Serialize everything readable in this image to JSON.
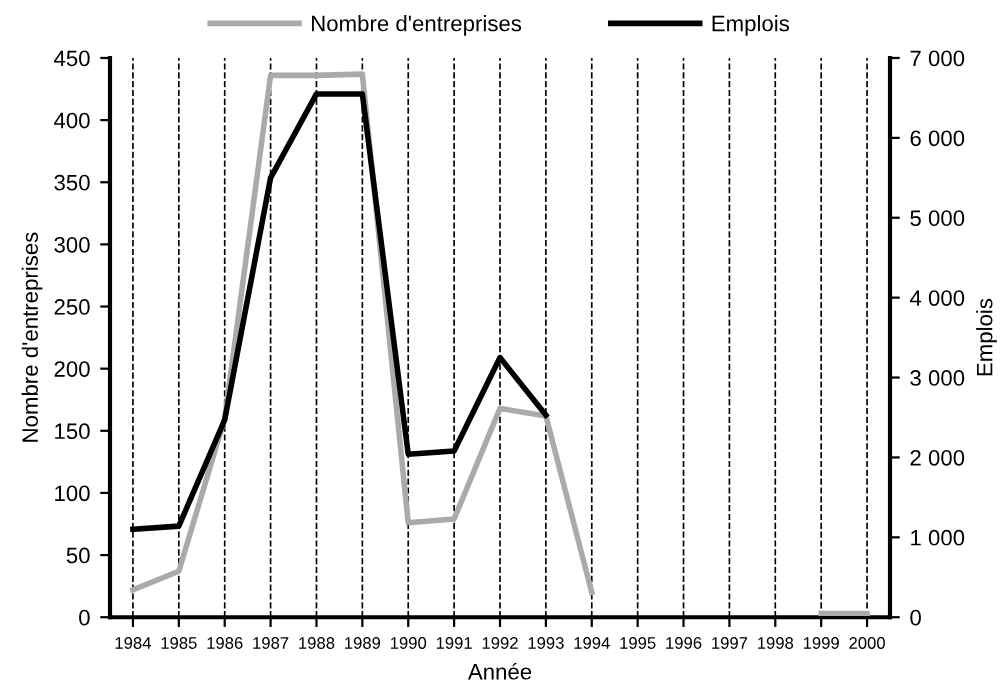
{
  "chart_data": {
    "type": "line",
    "xlabel": "Année",
    "ylabel": "Nombre d'entreprises",
    "y2label": "Emplois",
    "categories": [
      "1984",
      "1985",
      "1986",
      "1987",
      "1988",
      "1989",
      "1990",
      "1991",
      "1992",
      "1993",
      "1994",
      "1995",
      "1996",
      "1997",
      "1998",
      "1999",
      "2000"
    ],
    "series": [
      {
        "name": "Nombre d'entreprises",
        "color": "#aaaaaa",
        "values": [
          22,
          37,
          160,
          436,
          436,
          437,
          76,
          79,
          168,
          162,
          20,
          null,
          null,
          null,
          null,
          3,
          3
        ]
      },
      {
        "name": "Emplois",
        "color": "#000000",
        "axis": "y2",
        "values": [
          1100,
          1140,
          2470,
          5500,
          6550,
          6550,
          2040,
          2080,
          3250,
          2530,
          null,
          null,
          null,
          null,
          null,
          null,
          null
        ]
      }
    ],
    "ylim": [
      0,
      450
    ],
    "yticks": [
      0,
      50,
      100,
      150,
      200,
      250,
      300,
      350,
      400,
      450
    ],
    "y2lim": [
      0,
      7000
    ],
    "y2ticks": [
      0,
      {
        "value": 1000,
        "label": "1 000"
      },
      {
        "value": 2000,
        "label": "2 000"
      },
      {
        "value": 3000,
        "label": "3 000"
      },
      {
        "value": 4000,
        "label": "4 000"
      },
      {
        "value": 5000,
        "label": "5 000"
      },
      {
        "value": 6000,
        "label": "6 000"
      },
      {
        "value": 7000,
        "label": "7 000"
      }
    ],
    "grid": "x",
    "legend": "top",
    "line_style": "solid",
    "marker": "none"
  }
}
